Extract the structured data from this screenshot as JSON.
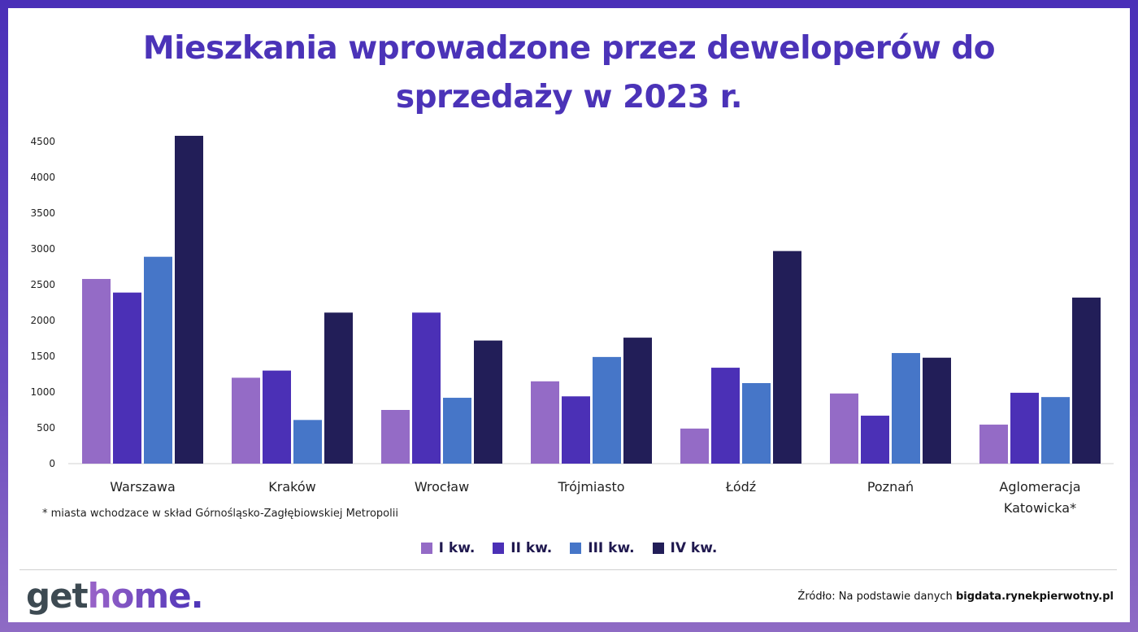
{
  "logo": "gethome.",
  "source": {
    "prefix": "Źródło: Na podstawie danych",
    "site": "bigdata.rynekpierwotny.pl"
  },
  "footnote": "* miasta wchodzace w skład Górnośląsko-Zagłębiowskiej Metropolii",
  "chart_data": {
    "type": "bar",
    "title": "Mieszkania wprowadzone przez deweloperów do sprzedaży w 2023 r.",
    "title_lines": [
      "Mieszkania wprowadzone przez deweloperów do",
      "sprzedaży w 2023 r."
    ],
    "categories": [
      "Warszawa",
      "Kraków",
      "Wrocław",
      "Trójmiasto",
      "Łódź",
      "Poznań",
      "Aglomeracja Katowicka*"
    ],
    "yticks": [
      0,
      500,
      1000,
      1500,
      2000,
      2500,
      3000,
      3500,
      4000,
      4500
    ],
    "ylim": [
      0,
      4500
    ],
    "grid": false,
    "legend_position": "bottom",
    "series": [
      {
        "name": "I kw.",
        "color": "#946bc6",
        "values": [
          2580,
          1200,
          750,
          1150,
          490,
          980,
          545
        ]
      },
      {
        "name": "II kw.",
        "color": "#4b30b6",
        "values": [
          2390,
          1300,
          2110,
          940,
          1340,
          670,
          990
        ]
      },
      {
        "name": "III kw.",
        "color": "#4676c8",
        "values": [
          2890,
          610,
          920,
          1490,
          1125,
          1545,
          930
        ]
      },
      {
        "name": "IV kw.",
        "color": "#221e58",
        "values": [
          4580,
          2110,
          1720,
          1760,
          2970,
          1480,
          2320
        ]
      }
    ]
  }
}
